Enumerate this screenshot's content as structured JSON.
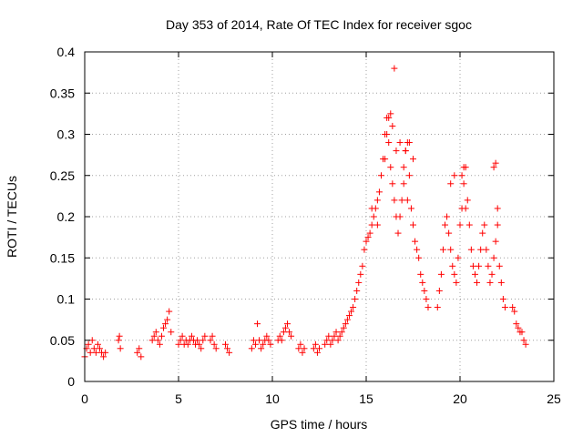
{
  "chart_data": {
    "type": "scatter",
    "title": "Day 353 of 2014, Rate Of TEC Index for receiver sgoc",
    "xlabel": "GPS time / hours",
    "ylabel": "ROTI / TECUs",
    "xlim": [
      0,
      25
    ],
    "ylim": [
      0,
      0.4
    ],
    "grid": true,
    "marker": "+",
    "color": "#ff0000",
    "xticks": [
      0,
      5,
      10,
      15,
      20,
      25
    ],
    "xtick_labels": [
      "0",
      "5",
      "10",
      "15",
      "20",
      "25"
    ],
    "yticks": [
      0,
      0.05,
      0.1,
      0.15,
      0.2,
      0.25,
      0.3,
      0.35,
      0.4
    ],
    "ytick_labels": [
      "0",
      "0.05",
      "0.1",
      "0.15",
      "0.2",
      "0.25",
      "0.3",
      "0.35",
      "0.4"
    ],
    "series": [
      {
        "name": "ROTI",
        "x": [
          0.0,
          0.1,
          0.2,
          0.3,
          0.4,
          0.5,
          0.6,
          0.7,
          0.8,
          0.9,
          1.0,
          1.1,
          1.8,
          1.85,
          1.9,
          2.8,
          2.9,
          3.0,
          3.6,
          3.7,
          3.8,
          3.9,
          4.0,
          4.1,
          4.2,
          4.3,
          4.4,
          4.5,
          4.6,
          5.0,
          5.1,
          5.2,
          5.3,
          5.4,
          5.5,
          5.6,
          5.7,
          5.8,
          5.9,
          6.0,
          6.1,
          6.2,
          6.3,
          6.4,
          6.7,
          6.8,
          6.9,
          7.0,
          7.5,
          7.6,
          7.7,
          8.9,
          9.0,
          9.1,
          9.2,
          9.3,
          9.4,
          9.5,
          9.6,
          9.7,
          9.8,
          9.9,
          10.3,
          10.4,
          10.5,
          10.6,
          10.7,
          10.8,
          10.9,
          11.0,
          11.4,
          11.5,
          11.6,
          11.7,
          12.2,
          12.3,
          12.4,
          12.5,
          12.8,
          12.9,
          13.0,
          13.1,
          13.2,
          13.3,
          13.4,
          13.5,
          13.6,
          13.7,
          13.8,
          13.9,
          14.0,
          14.1,
          14.2,
          14.3,
          14.4,
          14.5,
          14.6,
          14.7,
          14.8,
          14.9,
          15.0,
          15.1,
          15.2,
          15.3,
          15.4,
          15.5,
          15.6,
          15.7,
          15.8,
          15.9,
          16.0,
          16.1,
          16.2,
          16.3,
          16.4,
          16.5,
          16.6,
          16.7,
          16.8,
          16.9,
          17.0,
          17.1,
          17.2,
          17.3,
          17.4,
          17.5,
          17.6,
          17.7,
          17.8,
          17.9,
          18.0,
          18.1,
          18.2,
          18.3,
          18.8,
          18.9,
          19.0,
          19.1,
          19.2,
          19.3,
          19.4,
          19.5,
          19.6,
          19.7,
          19.8,
          19.9,
          20.0,
          20.1,
          20.2,
          20.3,
          20.4,
          20.5,
          20.6,
          20.7,
          20.8,
          20.9,
          21.0,
          21.1,
          21.2,
          21.3,
          21.4,
          21.5,
          21.6,
          21.7,
          21.8,
          21.9,
          22.0,
          22.1,
          22.2,
          22.3,
          22.4,
          22.8,
          22.9,
          23.0,
          23.1,
          23.2,
          23.3,
          23.4,
          23.5,
          15.3,
          16.0,
          16.1,
          16.2,
          16.3,
          16.5,
          16.8,
          17.0,
          17.2,
          17.3,
          17.5,
          19.5,
          19.7,
          20.1,
          20.2,
          20.3,
          21.8,
          21.9,
          22.0,
          16.4,
          16.6,
          17.1,
          15.6
        ],
        "y": [
          0.03,
          0.04,
          0.045,
          0.035,
          0.05,
          0.04,
          0.035,
          0.045,
          0.04,
          0.035,
          0.03,
          0.035,
          0.05,
          0.055,
          0.04,
          0.035,
          0.04,
          0.03,
          0.05,
          0.055,
          0.06,
          0.05,
          0.045,
          0.055,
          0.065,
          0.07,
          0.075,
          0.085,
          0.06,
          0.045,
          0.05,
          0.055,
          0.045,
          0.05,
          0.045,
          0.05,
          0.055,
          0.05,
          0.045,
          0.05,
          0.045,
          0.04,
          0.05,
          0.055,
          0.05,
          0.055,
          0.045,
          0.04,
          0.045,
          0.04,
          0.035,
          0.04,
          0.05,
          0.045,
          0.07,
          0.05,
          0.04,
          0.045,
          0.05,
          0.055,
          0.05,
          0.045,
          0.05,
          0.055,
          0.05,
          0.06,
          0.065,
          0.07,
          0.06,
          0.055,
          0.04,
          0.045,
          0.035,
          0.04,
          0.04,
          0.045,
          0.035,
          0.04,
          0.045,
          0.05,
          0.055,
          0.045,
          0.05,
          0.055,
          0.06,
          0.05,
          0.055,
          0.06,
          0.065,
          0.07,
          0.075,
          0.08,
          0.085,
          0.09,
          0.1,
          0.11,
          0.12,
          0.13,
          0.14,
          0.16,
          0.17,
          0.175,
          0.18,
          0.19,
          0.2,
          0.21,
          0.22,
          0.23,
          0.25,
          0.27,
          0.3,
          0.32,
          0.29,
          0.26,
          0.24,
          0.22,
          0.2,
          0.18,
          0.2,
          0.22,
          0.26,
          0.28,
          0.29,
          0.25,
          0.21,
          0.19,
          0.17,
          0.16,
          0.15,
          0.13,
          0.12,
          0.11,
          0.1,
          0.09,
          0.09,
          0.11,
          0.13,
          0.16,
          0.19,
          0.2,
          0.18,
          0.16,
          0.14,
          0.13,
          0.12,
          0.15,
          0.19,
          0.21,
          0.24,
          0.26,
          0.22,
          0.19,
          0.16,
          0.14,
          0.13,
          0.12,
          0.14,
          0.16,
          0.18,
          0.19,
          0.16,
          0.14,
          0.12,
          0.13,
          0.15,
          0.17,
          0.19,
          0.14,
          0.12,
          0.1,
          0.09,
          0.09,
          0.085,
          0.07,
          0.065,
          0.06,
          0.06,
          0.05,
          0.045,
          0.21,
          0.27,
          0.3,
          0.32,
          0.325,
          0.38,
          0.29,
          0.24,
          0.22,
          0.29,
          0.27,
          0.24,
          0.25,
          0.25,
          0.26,
          0.21,
          0.26,
          0.265,
          0.21,
          0.31,
          0.28,
          0.28,
          0.19
        ]
      }
    ]
  }
}
